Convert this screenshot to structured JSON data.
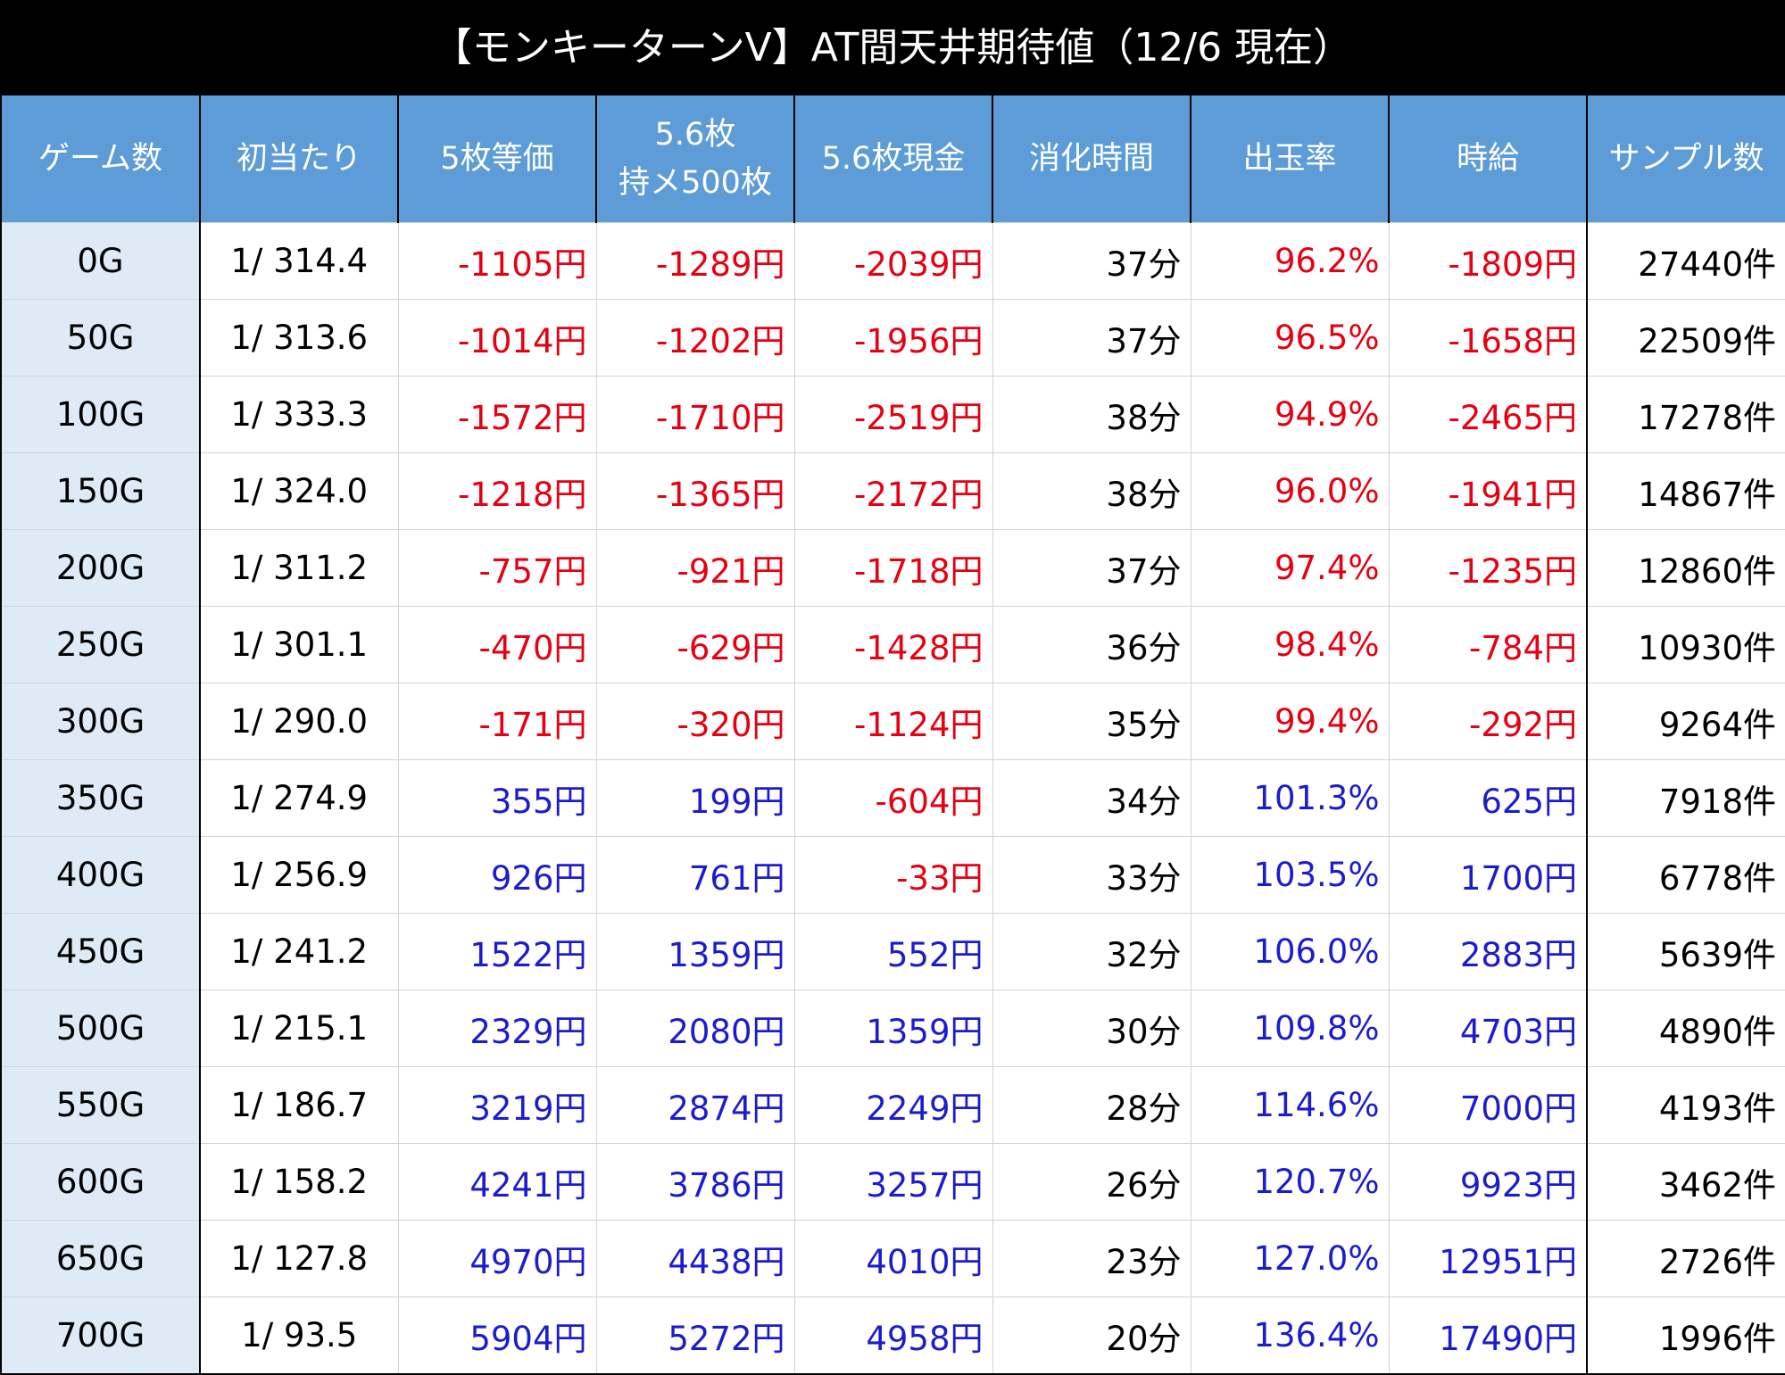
{
  "title": "【モンキーターンV】AT間天井期待値（12/6 現在）",
  "colors": {
    "loss": "#e60012",
    "gain": "#1c1ccf"
  },
  "table": {
    "headers": [
      "ゲーム数",
      "初当たり",
      "5枚等価",
      "5.6枚\n持メ500枚",
      "5.6枚現金",
      "消化時間",
      "出玉率",
      "時給",
      "サンプル数"
    ],
    "rows": [
      [
        "0G",
        "1/ 314.4",
        "-1105円",
        "-1289円",
        "-2039円",
        "37分",
        "96.2%",
        "-1809円",
        "27440件"
      ],
      [
        "50G",
        "1/ 313.6",
        "-1014円",
        "-1202円",
        "-1956円",
        "37分",
        "96.5%",
        "-1658円",
        "22509件"
      ],
      [
        "100G",
        "1/ 333.3",
        "-1572円",
        "-1710円",
        "-2519円",
        "38分",
        "94.9%",
        "-2465円",
        "17278件"
      ],
      [
        "150G",
        "1/ 324.0",
        "-1218円",
        "-1365円",
        "-2172円",
        "38分",
        "96.0%",
        "-1941円",
        "14867件"
      ],
      [
        "200G",
        "1/ 311.2",
        "-757円",
        "-921円",
        "-1718円",
        "37分",
        "97.4%",
        "-1235円",
        "12860件"
      ],
      [
        "250G",
        "1/ 301.1",
        "-470円",
        "-629円",
        "-1428円",
        "36分",
        "98.4%",
        "-784円",
        "10930件"
      ],
      [
        "300G",
        "1/ 290.0",
        "-171円",
        "-320円",
        "-1124円",
        "35分",
        "99.4%",
        "-292円",
        "9264件"
      ],
      [
        "350G",
        "1/ 274.9",
        "355円",
        "199円",
        "-604円",
        "34分",
        "101.3%",
        "625円",
        "7918件"
      ],
      [
        "400G",
        "1/ 256.9",
        "926円",
        "761円",
        "-33円",
        "33分",
        "103.5%",
        "1700円",
        "6778件"
      ],
      [
        "450G",
        "1/ 241.2",
        "1522円",
        "1359円",
        "552円",
        "32分",
        "106.0%",
        "2883円",
        "5639件"
      ],
      [
        "500G",
        "1/ 215.1",
        "2329円",
        "2080円",
        "1359円",
        "30分",
        "109.8%",
        "4703円",
        "4890件"
      ],
      [
        "550G",
        "1/ 186.7",
        "3219円",
        "2874円",
        "2249円",
        "28分",
        "114.6%",
        "7000円",
        "4193件"
      ],
      [
        "600G",
        "1/ 158.2",
        "4241円",
        "3786円",
        "3257円",
        "26分",
        "120.7%",
        "9923円",
        "3462件"
      ],
      [
        "650G",
        "1/ 127.8",
        "4970円",
        "4438円",
        "4010円",
        "23分",
        "127.0%",
        "12951円",
        "2726件"
      ],
      [
        "700G",
        "1/ 93.5",
        "5904円",
        "5272円",
        "4958円",
        "20分",
        "136.4%",
        "17490円",
        "1996件"
      ]
    ]
  }
}
